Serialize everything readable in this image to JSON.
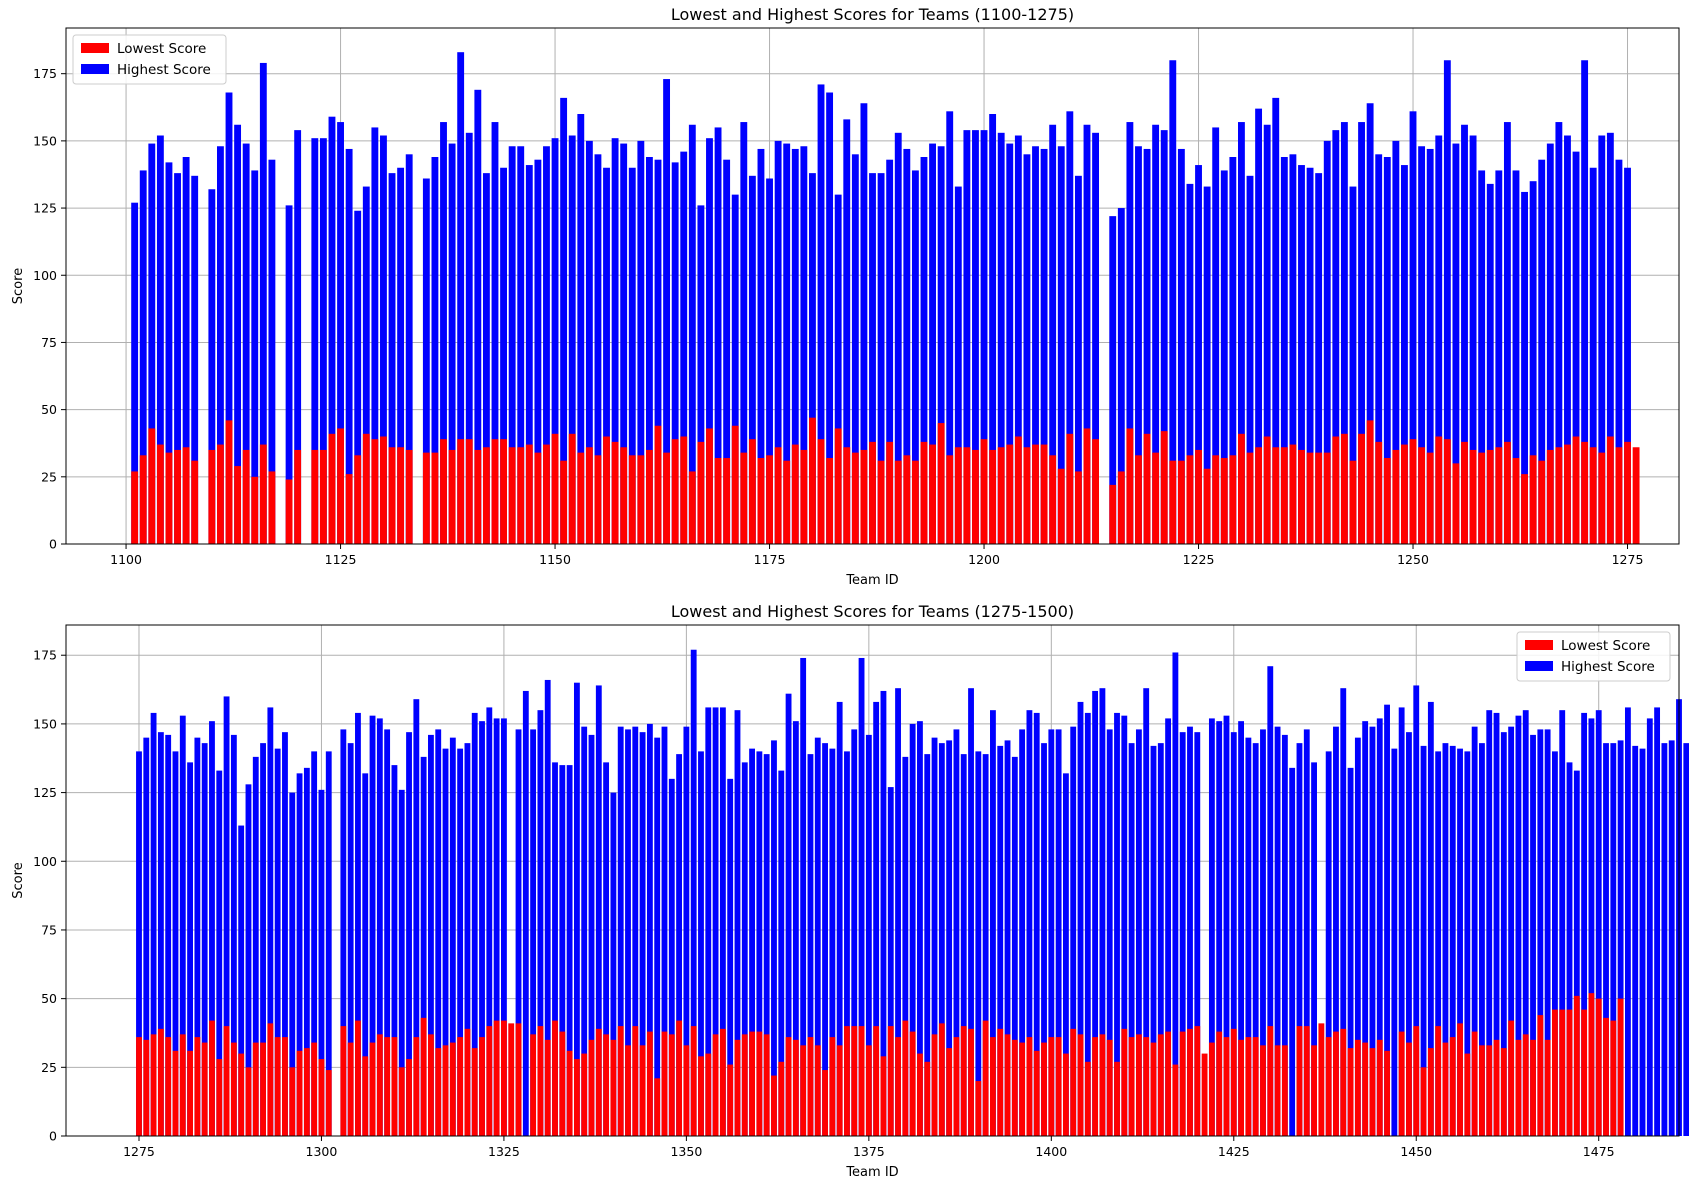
{
  "chart_data": [
    {
      "type": "bar",
      "stacked": "overlay",
      "title": "Lowest and Highest Scores for Teams (1100-1275)",
      "xlabel": "Team ID",
      "ylabel": "Score",
      "x_start": 1101,
      "xlim": [
        1093,
        1281
      ],
      "ylim": [
        0,
        192
      ],
      "xticks": [
        1100,
        1125,
        1150,
        1175,
        1200,
        1225,
        1250,
        1275
      ],
      "yticks": [
        0,
        25,
        50,
        75,
        100,
        125,
        150,
        175
      ],
      "grid": true,
      "legend_position": "top-left",
      "colors": {
        "lowest": "#ff0000",
        "highest": "#0000ff"
      },
      "series": [
        {
          "name": "Lowest Score",
          "values": [
            27,
            33,
            43,
            37,
            34,
            35,
            36,
            31,
            null,
            35,
            37,
            46,
            29,
            35,
            25,
            37,
            27,
            null,
            24,
            35,
            null,
            35,
            35,
            41,
            43,
            26,
            33,
            41,
            39,
            40,
            36,
            36,
            35,
            null,
            34,
            34,
            39,
            35,
            39,
            39,
            35,
            36,
            39,
            39,
            36,
            36,
            37,
            34,
            37,
            41,
            31,
            41,
            34,
            36,
            33,
            40,
            38,
            36,
            33,
            33,
            35,
            44,
            34,
            39,
            40,
            27,
            38,
            43,
            32,
            32,
            44,
            34,
            39,
            32,
            33,
            36,
            31,
            37,
            35,
            47,
            39,
            32,
            43,
            36,
            34,
            35,
            38,
            31,
            38,
            31,
            33,
            31,
            38,
            37,
            45,
            33,
            36,
            36,
            35,
            39,
            35,
            36,
            37,
            40,
            36,
            37,
            37,
            33,
            28,
            41,
            27,
            43,
            39,
            null,
            22,
            27,
            43,
            33,
            41,
            34,
            42,
            31,
            31,
            33,
            35,
            28,
            33,
            32,
            33,
            41,
            34,
            36,
            40,
            36,
            36,
            37,
            35,
            34,
            34,
            34,
            40,
            41,
            31,
            41,
            46,
            38,
            32,
            35,
            37,
            39,
            36,
            34,
            40,
            39,
            30,
            38,
            35,
            34,
            35,
            36,
            38,
            32,
            26,
            33,
            31,
            35,
            36,
            37,
            40,
            38,
            36,
            34,
            40,
            36,
            38,
            36
          ],
          "note_overlay": true
        },
        {
          "name": "Highest Score",
          "values": [
            127,
            139,
            149,
            152,
            142,
            138,
            144,
            137,
            null,
            132,
            148,
            168,
            156,
            149,
            139,
            179,
            143,
            null,
            126,
            154,
            null,
            151,
            151,
            159,
            157,
            147,
            124,
            133,
            155,
            152,
            138,
            140,
            145,
            null,
            136,
            144,
            157,
            149,
            183,
            153,
            169,
            138,
            157,
            140,
            148,
            148,
            141,
            143,
            148,
            151,
            166,
            152,
            160,
            150,
            145,
            140,
            151,
            149,
            140,
            150,
            144,
            143,
            173,
            142,
            146,
            156,
            126,
            151,
            155,
            143,
            130,
            157,
            137,
            147,
            136,
            150,
            149,
            147,
            148,
            138,
            171,
            168,
            130,
            158,
            145,
            164,
            138,
            138,
            143,
            153,
            147,
            139,
            144,
            149,
            148,
            161,
            133,
            154,
            154,
            154,
            160,
            153,
            149,
            152,
            145,
            148,
            147,
            156,
            148,
            161,
            137,
            156,
            153,
            null,
            122,
            125,
            157,
            148,
            147,
            156,
            154,
            180,
            147,
            134,
            141,
            133,
            155,
            139,
            144,
            157,
            137,
            162,
            156,
            166,
            144,
            145,
            141,
            140,
            138,
            150,
            154,
            157,
            133,
            157,
            164,
            145,
            144,
            150,
            141,
            161,
            148,
            147,
            152,
            180,
            149,
            156,
            152,
            139,
            134,
            139,
            157,
            139,
            131,
            135,
            143,
            149,
            157,
            152,
            146,
            180,
            140,
            152,
            153,
            143,
            140
          ]
        }
      ]
    },
    {
      "type": "bar",
      "stacked": "overlay",
      "title": "Lowest and Highest Scores for Teams (1275-1500)",
      "xlabel": "Team ID",
      "ylabel": "Score",
      "x_start": 1275,
      "xlim": [
        1265,
        1486
      ],
      "ylim": [
        0,
        186
      ],
      "xticks": [
        1275,
        1300,
        1325,
        1350,
        1375,
        1400,
        1425,
        1450,
        1475
      ],
      "yticks": [
        0,
        25,
        50,
        75,
        100,
        125,
        150,
        175
      ],
      "grid": true,
      "legend_position": "top-right",
      "colors": {
        "lowest": "#ff0000",
        "highest": "#0000ff"
      },
      "series": [
        {
          "name": "Lowest Score",
          "values": [
            36,
            35,
            37,
            39,
            36,
            31,
            37,
            31,
            36,
            34,
            42,
            28,
            40,
            34,
            30,
            25,
            34,
            34,
            41,
            36,
            36,
            25,
            31,
            32,
            34,
            28,
            24,
            null,
            40,
            34,
            42,
            29,
            34,
            37,
            36,
            36,
            25,
            28,
            36,
            43,
            37,
            32,
            33,
            34,
            36,
            39,
            32,
            36,
            40,
            42,
            42,
            41,
            41,
            null,
            37,
            40,
            35,
            42,
            38,
            31,
            28,
            30,
            35,
            39,
            37,
            35,
            40,
            33,
            40,
            33,
            38,
            21,
            38,
            37,
            42,
            33,
            40,
            29,
            30,
            37,
            39,
            26,
            35,
            37,
            38,
            38,
            37,
            22,
            27,
            36,
            35,
            33,
            36,
            33,
            24,
            36,
            33,
            40,
            40,
            40,
            33,
            40,
            29,
            40,
            36,
            42,
            38,
            30,
            27,
            37,
            41,
            32,
            36,
            40,
            39,
            20,
            42,
            36,
            39,
            37,
            35,
            34,
            36,
            31,
            34,
            36,
            36,
            30,
            39,
            37,
            27,
            36,
            37,
            35,
            27,
            39,
            36,
            37,
            36,
            34,
            37,
            38,
            26,
            38,
            39,
            40,
            30,
            34,
            38,
            36,
            39,
            35,
            36,
            36,
            33,
            40,
            33,
            33,
            null,
            40,
            40,
            33,
            41,
            36,
            38,
            39,
            32,
            35,
            34,
            32,
            35,
            31,
            null,
            38,
            34,
            40,
            25,
            32,
            40,
            34,
            36,
            41,
            30,
            38,
            33,
            33,
            35,
            32,
            42,
            35,
            37,
            35,
            44,
            35,
            46,
            46,
            46,
            51,
            46,
            52,
            50,
            43,
            42,
            50
          ]
        },
        {
          "name": "Highest Score",
          "values": [
            140,
            145,
            154,
            147,
            146,
            140,
            153,
            136,
            145,
            143,
            151,
            133,
            160,
            146,
            113,
            128,
            138,
            143,
            156,
            141,
            147,
            125,
            132,
            134,
            140,
            126,
            140,
            null,
            148,
            143,
            154,
            132,
            153,
            152,
            148,
            135,
            126,
            147,
            159,
            138,
            146,
            148,
            141,
            145,
            141,
            143,
            154,
            151,
            156,
            152,
            152,
            null,
            148,
            162,
            148,
            155,
            166,
            136,
            135,
            135,
            165,
            149,
            146,
            164,
            136,
            125,
            149,
            148,
            149,
            147,
            150,
            145,
            149,
            130,
            139,
            149,
            177,
            140,
            156,
            156,
            156,
            130,
            155,
            136,
            141,
            140,
            139,
            144,
            133,
            161,
            151,
            174,
            139,
            145,
            143,
            141,
            158,
            140,
            148,
            174,
            146,
            158,
            162,
            127,
            163,
            138,
            150,
            151,
            139,
            145,
            143,
            144,
            148,
            139,
            163,
            140,
            139,
            155,
            142,
            144,
            138,
            148,
            155,
            154,
            143,
            148,
            148,
            132,
            149,
            158,
            154,
            162,
            163,
            148,
            154,
            153,
            143,
            148,
            163,
            142,
            143,
            152,
            176,
            147,
            149,
            147,
            null,
            152,
            151,
            153,
            147,
            151,
            145,
            143,
            148,
            171,
            149,
            146,
            134,
            143,
            148,
            136,
            null,
            140,
            149,
            163,
            134,
            145,
            151,
            149,
            152,
            157,
            141,
            156,
            147,
            164,
            142,
            158,
            140,
            143,
            142,
            141,
            140,
            149,
            143,
            155,
            154,
            147,
            149,
            153,
            155,
            146,
            148,
            148,
            140,
            155,
            136,
            133,
            154,
            152,
            155,
            143,
            143,
            144,
            156,
            142,
            141,
            152,
            156,
            143,
            144,
            159,
            143,
            142,
            144
          ]
        }
      ]
    }
  ]
}
